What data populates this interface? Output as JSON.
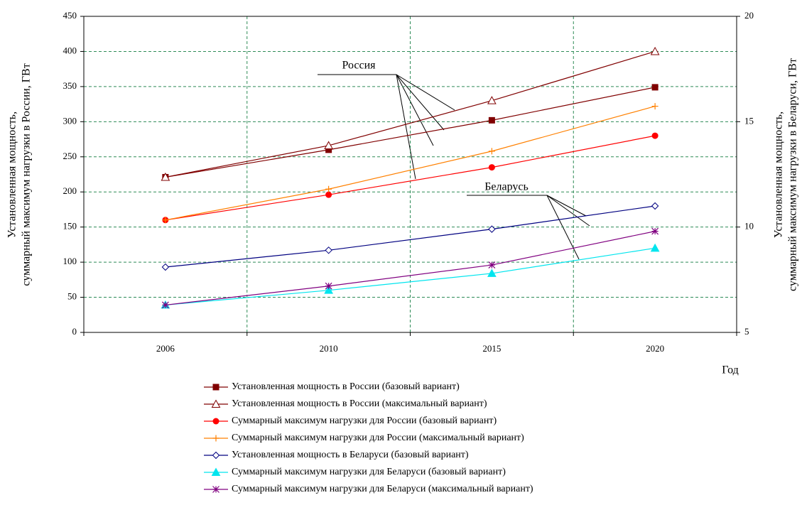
{
  "chart_data": {
    "type": "line",
    "categories": [
      "2006",
      "2010",
      "2015",
      "2020"
    ],
    "x_label": "Год",
    "y_label": [
      "Установленная мощность,",
      "суммарный максимум нагрузки в России, ГВт"
    ],
    "y2_label": [
      "Установленная мощность,",
      "суммарный максимум нагрузки в Беларуси, ГВт"
    ],
    "ylim": [
      0,
      450
    ],
    "yticks": [
      0,
      50,
      100,
      150,
      200,
      250,
      300,
      350,
      400,
      450
    ],
    "y2lim": [
      5,
      20
    ],
    "y2ticks": [
      5,
      10,
      15,
      20
    ],
    "grid": true,
    "annotations": [
      "Россия",
      "Беларусь"
    ],
    "series": [
      {
        "name": "Установленная мощность в России (базовый вариант)",
        "color": "#800000",
        "marker": "square",
        "values": [
          221,
          260,
          302,
          349
        ]
      },
      {
        "name": "Установленная мощность в России (максимальный вариант)",
        "color": "#800000",
        "marker": "triangle-open",
        "values": [
          221,
          266,
          330,
          400
        ]
      },
      {
        "name": "Суммарный максимум нагрузки для России (базовый вариант)",
        "color": "#ff0000",
        "marker": "circle",
        "values": [
          160,
          196,
          235,
          280
        ]
      },
      {
        "name": "Суммарный максимум нагрузки для России (максимальный вариант)",
        "color": "#ff8000",
        "marker": "plus",
        "values": [
          160,
          204,
          258,
          322
        ]
      },
      {
        "name": "Установленная мощность в Беларуси (базовый вариант)",
        "color": "#000080",
        "marker": "diamond-open",
        "axis": "y2",
        "values": [
          8.1,
          8.9,
          9.9,
          11.0
        ]
      },
      {
        "name": "Суммарный максимум нагрузки для Беларуси (базовый вариант)",
        "color": "#00e5ee",
        "marker": "triangle",
        "axis": "y2",
        "values": [
          6.3,
          7.0,
          7.8,
          9.0
        ]
      },
      {
        "name": "Суммарный максимум нагрузки для Беларуси (максимальный вариант)",
        "color": "#800080",
        "marker": "star",
        "axis": "y2",
        "values": [
          6.3,
          7.2,
          8.2,
          9.8
        ]
      }
    ]
  }
}
